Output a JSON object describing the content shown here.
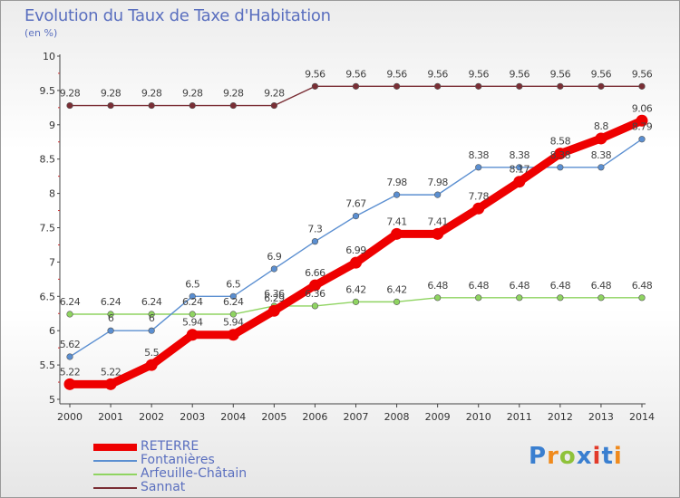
{
  "chart_data": {
    "type": "line",
    "title": "Evolution du Taux de Taxe d'Habitation",
    "subtitle": "(en %)",
    "x": [
      2000,
      2001,
      2002,
      2003,
      2004,
      2005,
      2006,
      2007,
      2008,
      2009,
      2010,
      2011,
      2012,
      2013,
      2014
    ],
    "ylim": [
      5,
      10
    ],
    "yticks": [
      "5",
      "5.5",
      "6",
      "6.5",
      "7",
      "7.5",
      "8",
      "8.5",
      "9",
      "9.5",
      "10"
    ],
    "grid": "none",
    "legend_position": "bottom-left",
    "series": [
      {
        "name": "RETERRE",
        "color": "#ee0000",
        "values": [
          5.22,
          5.22,
          5.5,
          5.94,
          5.94,
          6.29,
          6.66,
          6.99,
          7.41,
          7.41,
          7.78,
          8.17,
          8.58,
          8.8,
          9.06
        ],
        "labels": [
          "5.22",
          "5.22",
          "5.5",
          "5.94",
          "5.94",
          "6.29",
          "6.66",
          "6.99",
          "7.41",
          "7.41",
          "7.78",
          "8.17",
          "8.58",
          "8.8",
          "9.06"
        ]
      },
      {
        "name": "Fontanières",
        "color": "#5b8fd1",
        "values": [
          5.62,
          6,
          6,
          6.5,
          6.5,
          6.9,
          7.3,
          7.67,
          7.98,
          7.98,
          8.38,
          8.38,
          8.38,
          8.38,
          8.79
        ],
        "labels": [
          "5.62",
          "6",
          "6",
          "6.5",
          "6.5",
          "6.9",
          "7.3",
          "7.67",
          "7.98",
          "7.98",
          "8.38",
          "8.38",
          "8.38",
          "8.38",
          "8.79"
        ]
      },
      {
        "name": "Arfeuille-Châtain",
        "color": "#8fd461",
        "values": [
          6.24,
          6.24,
          6.24,
          6.24,
          6.24,
          6.36,
          6.36,
          6.42,
          6.42,
          6.48,
          6.48,
          6.48,
          6.48,
          6.48,
          6.48
        ],
        "labels": [
          "6.24",
          "6.24",
          "6.24",
          "6.24",
          "6.24",
          "6.36",
          "6.36",
          "6.42",
          "6.42",
          "6.48",
          "6.48",
          "6.48",
          "6.48",
          "6.48",
          "6.48"
        ]
      },
      {
        "name": "Sannat",
        "color": "#7a2e35",
        "values": [
          9.28,
          9.28,
          9.28,
          9.28,
          9.28,
          9.28,
          9.56,
          9.56,
          9.56,
          9.56,
          9.56,
          9.56,
          9.56,
          9.56,
          9.56
        ],
        "labels": [
          "9.28",
          "9.28",
          "9.28",
          "9.28",
          "9.28",
          "9.28",
          "9.56",
          "9.56",
          "9.56",
          "9.56",
          "9.56",
          "9.56",
          "9.56",
          "9.56",
          "9.56"
        ]
      }
    ]
  },
  "legend": {
    "items": [
      {
        "label": "RETERRE",
        "color": "#ee0000"
      },
      {
        "label": "Fontanières",
        "color": "#5b8fd1"
      },
      {
        "label": "Arfeuille-Châtain",
        "color": "#8fd461"
      },
      {
        "label": "Sannat",
        "color": "#7a2e35"
      }
    ]
  },
  "logo": {
    "text": "Proxiti",
    "colors": [
      "#3a7fd0",
      "#f08a1c",
      "#8fc23a",
      "#3a7fd0",
      "#e23a2a",
      "#3a7fd0",
      "#f08a1c"
    ]
  }
}
